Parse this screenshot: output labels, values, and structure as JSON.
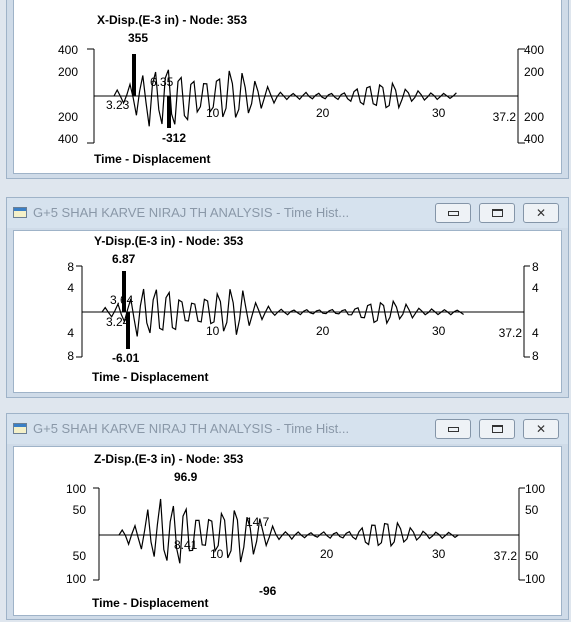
{
  "windows": [
    {
      "title": "",
      "chart": {
        "title": "X-Disp.(E-3 in) - Node: 353",
        "footer": "Time - Displacement",
        "y_ticks": [
          "400",
          "200",
          "200",
          "400"
        ],
        "y_ticks_right": [
          "400",
          "200",
          "200",
          "400"
        ],
        "x_ticks": [
          "10",
          "20",
          "30"
        ],
        "x_end": "37.2",
        "max_label": "355",
        "min_label": "-312",
        "max_time": "6.35",
        "min_time": "3.23"
      }
    },
    {
      "title": "G+5 SHAH KARVE NIRAJ TH ANALYSIS - Time Hist...",
      "chart": {
        "title": "Y-Disp.(E-3 in) - Node: 353",
        "footer": "Time - Displacement",
        "y_ticks": [
          "8",
          "4",
          "4",
          "8"
        ],
        "y_ticks_right": [
          "8",
          "4",
          "4",
          "8"
        ],
        "x_ticks": [
          "10",
          "20",
          "30"
        ],
        "x_end": "37.2",
        "max_label": "6.87",
        "min_label": "-6.01",
        "max_time": "3.64",
        "min_time": "3.24"
      }
    },
    {
      "title": "G+5 SHAH KARVE NIRAJ TH ANALYSIS - Time Hist...",
      "chart": {
        "title": "Z-Disp.(E-3 in) - Node: 353",
        "footer": "Time - Displacement",
        "y_ticks": [
          "100",
          "50",
          "50",
          "100"
        ],
        "y_ticks_right": [
          "100",
          "50",
          "50",
          "100"
        ],
        "x_ticks": [
          "10",
          "20",
          "30"
        ],
        "x_end": "37.2",
        "max_label": "96.9",
        "min_label": "-96",
        "max_time": "14.7",
        "min_time": "8.41"
      }
    }
  ],
  "window_controls": {
    "minimize": "minimize-icon",
    "maximize": "maximize-icon",
    "close": "close-icon"
  }
}
